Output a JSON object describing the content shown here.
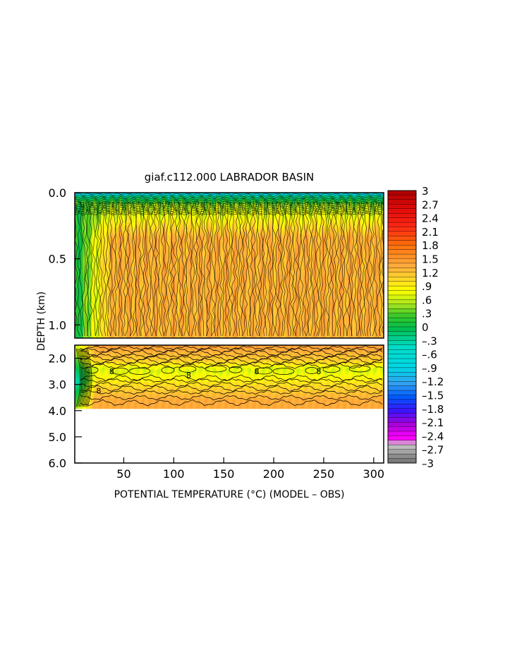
{
  "chart_data": {
    "type": "heatmap",
    "title": "giaf.c112.000 LABRADOR BASIN",
    "xlabel": "POTENTIAL TEMPERATURE (°C) (MODEL – OBS)",
    "ylabel": "DEPTH (km)",
    "x_ticks": [
      50,
      100,
      150,
      200,
      250,
      300
    ],
    "x_tick_labels": [
      "50",
      "100",
      "150",
      "200",
      "250",
      "300"
    ],
    "xlim": [
      1,
      310
    ],
    "panels": [
      {
        "name": "upper",
        "ylim": [
          0.0,
          1.1
        ],
        "y_ticks": [
          0.0,
          0.5,
          1.0
        ],
        "y_tick_labels": [
          "0.0",
          "0.5",
          "1.0"
        ]
      },
      {
        "name": "lower",
        "ylim": [
          1.5,
          6.0
        ],
        "y_ticks": [
          2.0,
          3.0,
          4.0,
          5.0,
          6.0
        ],
        "y_tick_labels": [
          "2.0",
          "3.0",
          "4.0",
          "5.0",
          "6.0"
        ],
        "data_bottom_km": 3.9
      }
    ],
    "colorbar": {
      "min": -3,
      "max": 3,
      "interval": 0.1,
      "tick_values": [
        3,
        2.7,
        2.4,
        2.1,
        1.8,
        1.5,
        1.2,
        0.9,
        0.6,
        0.3,
        0,
        -0.3,
        -0.6,
        -0.9,
        -1.2,
        -1.5,
        -1.8,
        -2.1,
        -2.4,
        -2.7,
        -3
      ],
      "tick_labels": [
        "3",
        "2.7",
        "2.4",
        "2.1",
        "1.8",
        "1.5",
        "1.2",
        ".9",
        ".6",
        ".3",
        "0",
        "–.3",
        "–.6",
        "–.9",
        "–1.2",
        "–1.5",
        "–1.8",
        "–2.1",
        "–2.4",
        "–2.7",
        "–3"
      ]
    },
    "contour_labels": [
      {
        "text": "8",
        "x": 38,
        "depth": 2.6
      },
      {
        "text": "8",
        "x": 115,
        "depth": 2.75
      },
      {
        "text": "8",
        "x": 183,
        "depth": 2.6
      },
      {
        "text": "8",
        "x": 245,
        "depth": 2.6
      },
      {
        "text": "8",
        "x": 25,
        "depth": 3.35
      }
    ],
    "colors": {
      "scale": [
        "#737373",
        "#9a9a9a",
        "#c4c4c4",
        "#ff00ff",
        "#b000e0",
        "#4020ff",
        "#0060ff",
        "#30b0f0",
        "#00e6e6",
        "#00d0a0",
        "#00c040",
        "#90e020",
        "#ffff00",
        "#ffd020",
        "#ffa030",
        "#ff7000",
        "#ff1010",
        "#c00000"
      ]
    }
  }
}
